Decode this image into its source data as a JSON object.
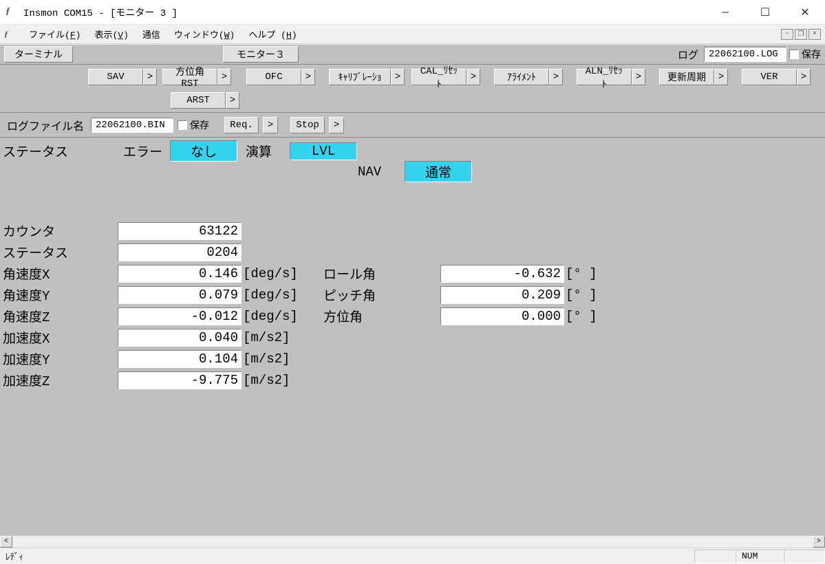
{
  "window": {
    "title": "Insmon COM15 - [モニター 3 ]"
  },
  "menubar": {
    "file": "ファイル(F)",
    "view": "表示(V)",
    "comm": "通信",
    "window": "ウィンドウ(W)",
    "help": "ヘルプ (H)"
  },
  "toolbar1": {
    "terminal": "ターミナル",
    "monitor": "モニター３",
    "log_label": "ログ",
    "log_file": "22062100.LOG",
    "save_label": "保存"
  },
  "toolbar2": {
    "sav": "SAV",
    "azrst": "方位角RST",
    "ofc": "OFC",
    "calib": "ｷｬﾘﾌﾞﾚｰｼｮ",
    "calrst": "CAL_ﾘｾｯﾄ",
    "align": "ｱﾗｲﾒﾝﾄ",
    "alnrst": "ALN_ﾘｾｯﾄ",
    "update": "更新周期",
    "ver": "VER",
    "arst": "ARST"
  },
  "toolbar3": {
    "logfile_label": "ログファイル名",
    "logfile": "22062100.BIN",
    "save_label": "保存",
    "req": "Req.",
    "stop": "Stop"
  },
  "status": {
    "status_label": "ステータス",
    "error_label": "エラー",
    "error_val": "なし",
    "calc_label": "演算",
    "calc_val": "LVL",
    "nav_label": "NAV",
    "nav_val": "通常"
  },
  "data": {
    "rows_left": [
      {
        "label": "カウンタ",
        "value": "63122",
        "unit": ""
      },
      {
        "label": "ステータス",
        "value": "0204",
        "unit": ""
      },
      {
        "label": "角速度X",
        "value": "0.146",
        "unit": "[deg/s]"
      },
      {
        "label": "角速度Y",
        "value": "0.079",
        "unit": "[deg/s]"
      },
      {
        "label": "角速度Z",
        "value": "-0.012",
        "unit": "[deg/s]"
      },
      {
        "label": "加速度X",
        "value": "0.040",
        "unit": "[m/s2]"
      },
      {
        "label": "加速度Y",
        "value": "0.104",
        "unit": "[m/s2]"
      },
      {
        "label": "加速度Z",
        "value": "-9.775",
        "unit": "[m/s2]"
      }
    ],
    "rows_right": [
      {
        "label": "ロール角",
        "value": "-0.632",
        "unit": "[° ]"
      },
      {
        "label": "ピッチ角",
        "value": "0.209",
        "unit": "[° ]"
      },
      {
        "label": "方位角",
        "value": "0.000",
        "unit": "[° ]"
      }
    ]
  },
  "statusbar": {
    "ready": "ﾚﾃﾞｨ",
    "num": "NUM"
  },
  "colors": {
    "highlight": "#34d3ef",
    "panel": "#c0c0c0",
    "window_bg": "#f0f0f0"
  }
}
